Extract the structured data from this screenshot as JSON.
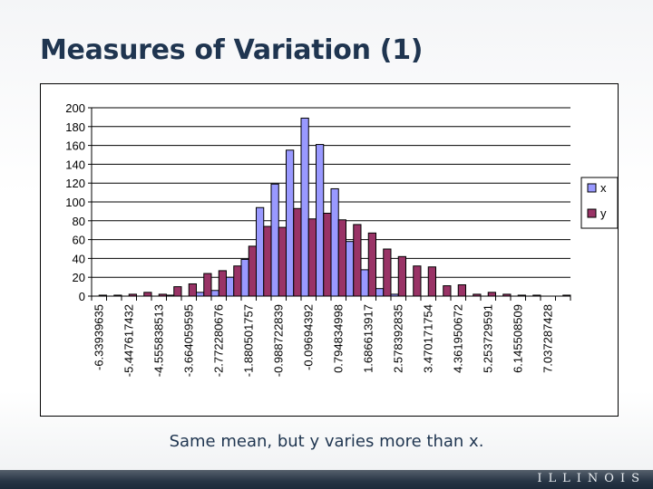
{
  "slide": {
    "title": "Measures of Variation (1)",
    "caption": "Same mean, but y varies more than x.",
    "footer_logo": "ILLINOIS"
  },
  "chart_data": {
    "type": "bar",
    "title": "",
    "xlabel": "",
    "ylabel": "",
    "ylim": [
      0,
      200
    ],
    "y_ticks": [
      0,
      20,
      40,
      60,
      80,
      100,
      120,
      140,
      160,
      180,
      200
    ],
    "grid": true,
    "legend_position": "right",
    "bin_count": 32,
    "x_tick_labels_every": 2,
    "x_tick_labels": [
      "-6.33939635",
      "-5.447617432",
      "-4.555838513",
      "-3.664059595",
      "-2.772280676",
      "-1.880501757",
      "-0.988722839",
      "-0.09694392",
      "0.794834998",
      "1.686613917",
      "2.578392835",
      "3.470171754",
      "4.361950672",
      "5.253729591",
      "6.145508509",
      "7.037287428"
    ],
    "series": [
      {
        "name": "x",
        "color": "#9999ff",
        "values": [
          0,
          0,
          0,
          0,
          0,
          1,
          0,
          4,
          6,
          20,
          39,
          94,
          119,
          155,
          189,
          161,
          114,
          58,
          28,
          8,
          2,
          0,
          0,
          0,
          0,
          0,
          0,
          0,
          0,
          0,
          0,
          0
        ]
      },
      {
        "name": "y",
        "color": "#993366",
        "values": [
          1,
          1,
          2,
          4,
          2,
          10,
          13,
          24,
          27,
          32,
          53,
          74,
          73,
          93,
          82,
          88,
          81,
          76,
          67,
          50,
          42,
          32,
          31,
          11,
          12,
          2,
          4,
          2,
          1,
          1,
          0,
          1
        ]
      }
    ]
  }
}
